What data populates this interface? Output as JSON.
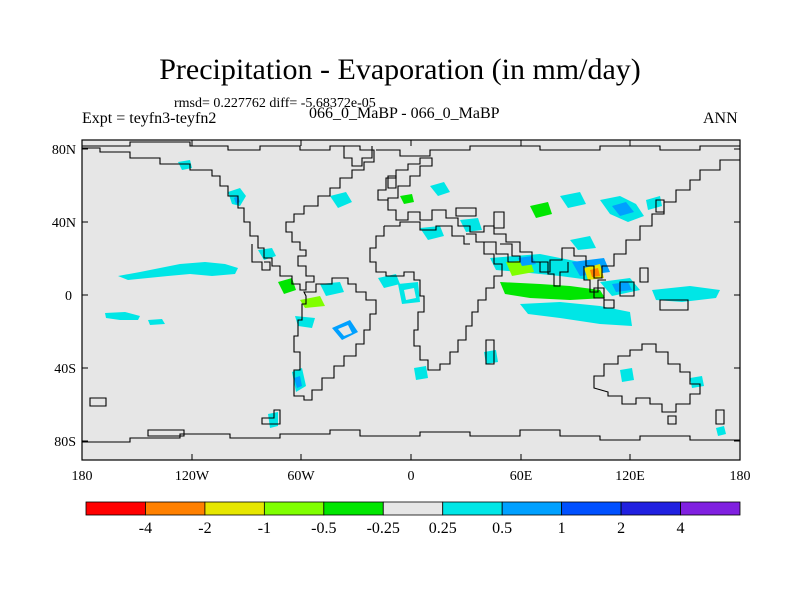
{
  "title": "Precipitation - Evaporation (in mm/day)",
  "stats": "rmsd= 0.227762 diff= -5.68372e-05",
  "left_label": "Expt = teyfn3-teyfn2",
  "center_label": "066_0_MaBP - 066_0_MaBP",
  "right_label": "ANN",
  "colors": {
    "land_background": "#e6e6e6",
    "coastline": "#000000"
  },
  "axes": {
    "lat_ticks": [
      "80N",
      "40N",
      "0",
      "40S",
      "80S"
    ],
    "lon_ticks": [
      "180",
      "120W",
      "60W",
      "0",
      "60E",
      "120E",
      "180"
    ]
  },
  "colorbar": {
    "colors": [
      "#ff0000",
      "#ff8000",
      "#e6e600",
      "#80ff00",
      "#00e600",
      "#e6e6e6",
      "#00e6e6",
      "#00a0ff",
      "#0050ff",
      "#2020e0",
      "#8020e0"
    ],
    "labels": [
      "-4",
      "-2",
      "-1",
      "-0.5",
      "-0.25",
      "0.25",
      "0.5",
      "1",
      "2",
      "4"
    ]
  }
}
